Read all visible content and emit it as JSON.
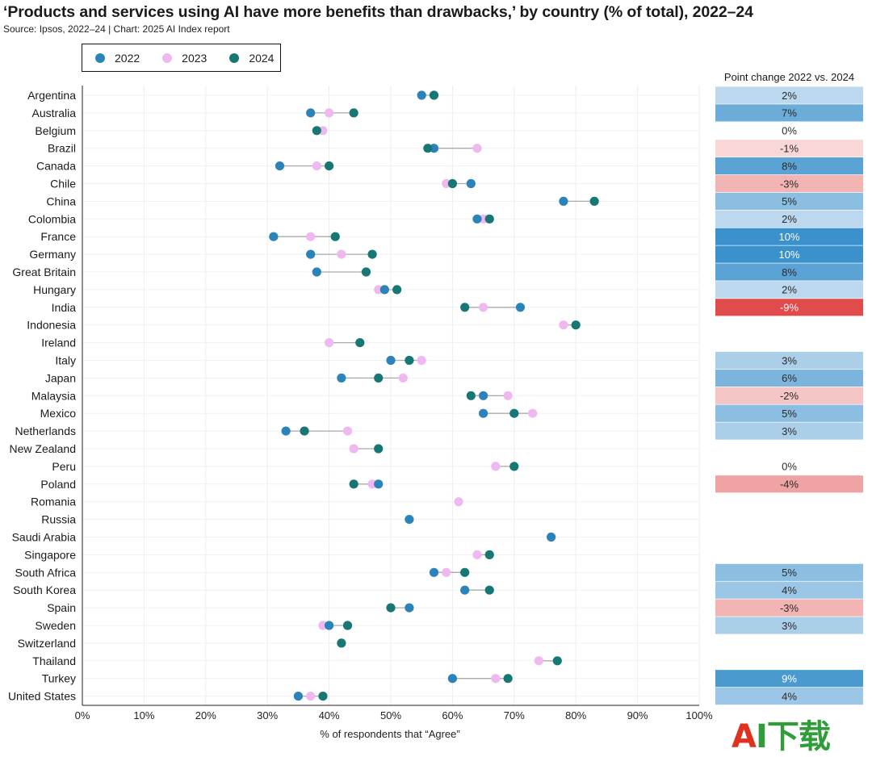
{
  "title": "‘Products and services using AI have more benefits than drawbacks,’ by country (% of total), 2022–24",
  "subtitle": "Source: Ipsos, 2022–24 | Chart: 2025 AI Index report",
  "watermark": "AI下载",
  "colors": {
    "2022": "#2b83ba",
    "2023": "#efb8f0",
    "2024": "#177774",
    "connector": "#aaaaaa"
  },
  "chart_data": {
    "type": "scatter",
    "xlabel": "% of respondents that “Agree”",
    "xlim": [
      0,
      100
    ],
    "xticks": [
      "0%",
      "10%",
      "20%",
      "30%",
      "40%",
      "50%",
      "60%",
      "70%",
      "80%",
      "90%",
      "100%"
    ],
    "grid": true,
    "legend_position": "top-left",
    "legend": [
      "2022",
      "2023",
      "2024"
    ],
    "categories": [
      "Argentina",
      "Australia",
      "Belgium",
      "Brazil",
      "Canada",
      "Chile",
      "China",
      "Colombia",
      "France",
      "Germany",
      "Great Britain",
      "Hungary",
      "India",
      "Indonesia",
      "Ireland",
      "Italy",
      "Japan",
      "Malaysia",
      "Mexico",
      "Netherlands",
      "New Zealand",
      "Peru",
      "Poland",
      "Romania",
      "Russia",
      "Saudi Arabia",
      "Singapore",
      "South Africa",
      "South Korea",
      "Spain",
      "Sweden",
      "Switzerland",
      "Thailand",
      "Turkey",
      "United States"
    ],
    "series": [
      {
        "name": "2022",
        "values": [
          55,
          37,
          null,
          57,
          32,
          63,
          78,
          64,
          31,
          37,
          38,
          49,
          71,
          null,
          null,
          50,
          42,
          65,
          65,
          33,
          null,
          null,
          48,
          null,
          53,
          76,
          null,
          57,
          62,
          53,
          40,
          null,
          null,
          60,
          35
        ]
      },
      {
        "name": "2023",
        "values": [
          null,
          40,
          39,
          64,
          38,
          59,
          null,
          65,
          37,
          42,
          null,
          48,
          65,
          78,
          40,
          55,
          52,
          69,
          73,
          43,
          44,
          67,
          47,
          61,
          null,
          null,
          64,
          59,
          null,
          null,
          39,
          null,
          74,
          67,
          37
        ]
      },
      {
        "name": "2024",
        "values": [
          57,
          44,
          38,
          56,
          40,
          60,
          83,
          66,
          41,
          47,
          46,
          51,
          62,
          80,
          45,
          53,
          48,
          63,
          70,
          36,
          48,
          70,
          44,
          null,
          null,
          null,
          66,
          62,
          66,
          50,
          43,
          42,
          77,
          69,
          39
        ]
      }
    ],
    "point_change_title": "Point change 2022 vs. 2024",
    "point_change": [
      "2%",
      "7%",
      "0%",
      "-1%",
      "8%",
      "-3%",
      "5%",
      "2%",
      "10%",
      "10%",
      "8%",
      "2%",
      "-9%",
      "",
      "",
      "3%",
      "6%",
      "-2%",
      "5%",
      "3%",
      "",
      "0%",
      "-4%",
      "",
      "",
      "",
      "",
      "5%",
      "4%",
      "-3%",
      "3%",
      "",
      "",
      "9%",
      "4%"
    ],
    "point_change_values": [
      2,
      7,
      0,
      -1,
      8,
      -3,
      5,
      2,
      10,
      10,
      8,
      2,
      -9,
      null,
      null,
      3,
      6,
      -2,
      5,
      3,
      null,
      0,
      -4,
      null,
      null,
      null,
      null,
      5,
      4,
      -3,
      3,
      null,
      null,
      9,
      4
    ]
  }
}
